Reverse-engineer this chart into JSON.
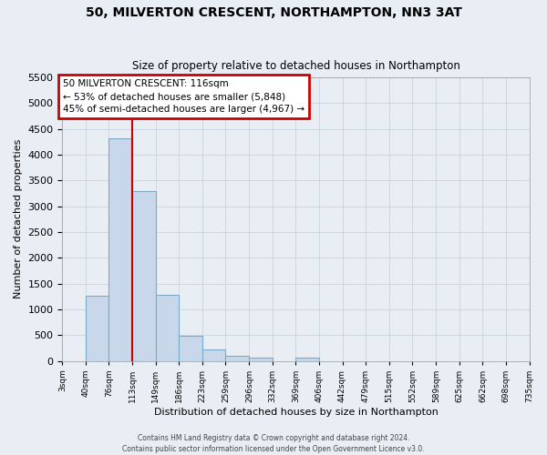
{
  "title": "50, MILVERTON CRESCENT, NORTHAMPTON, NN3 3AT",
  "subtitle": "Size of property relative to detached houses in Northampton",
  "xlabel": "Distribution of detached houses by size in Northampton",
  "ylabel": "Number of detached properties",
  "bin_edges": [
    3,
    40,
    76,
    113,
    149,
    186,
    223,
    259,
    296,
    332,
    369,
    406,
    442,
    479,
    515,
    552,
    589,
    625,
    662,
    698,
    735
  ],
  "bar_heights": [
    0,
    1270,
    4320,
    3290,
    1280,
    480,
    230,
    95,
    60,
    0,
    60,
    0,
    0,
    0,
    0,
    0,
    0,
    0,
    0,
    0
  ],
  "bar_color": "#c8d8ea",
  "bar_edgecolor": "#7aaaca",
  "bar_linewidth": 0.8,
  "ylim": [
    0,
    5500
  ],
  "yticks": [
    0,
    500,
    1000,
    1500,
    2000,
    2500,
    3000,
    3500,
    4000,
    4500,
    5000,
    5500
  ],
  "x_tick_labels": [
    "3sqm",
    "40sqm",
    "76sqm",
    "113sqm",
    "149sqm",
    "186sqm",
    "223sqm",
    "259sqm",
    "296sqm",
    "332sqm",
    "369sqm",
    "406sqm",
    "442sqm",
    "479sqm",
    "515sqm",
    "552sqm",
    "589sqm",
    "625sqm",
    "662sqm",
    "698sqm",
    "735sqm"
  ],
  "vline_x": 113,
  "vline_color": "#cc0000",
  "vline_linewidth": 1.5,
  "annotation_title": "50 MILVERTON CRESCENT: 116sqm",
  "annotation_line1": "← 53% of detached houses are smaller (5,848)",
  "annotation_line2": "45% of semi-detached houses are larger (4,967) →",
  "annotation_box_edgecolor": "#cc0000",
  "annotation_box_facecolor": "#ffffff",
  "grid_color": "#c8d4de",
  "background_color": "#e8eef4",
  "footer1": "Contains HM Land Registry data © Crown copyright and database right 2024.",
  "footer2": "Contains public sector information licensed under the Open Government Licence v3.0."
}
